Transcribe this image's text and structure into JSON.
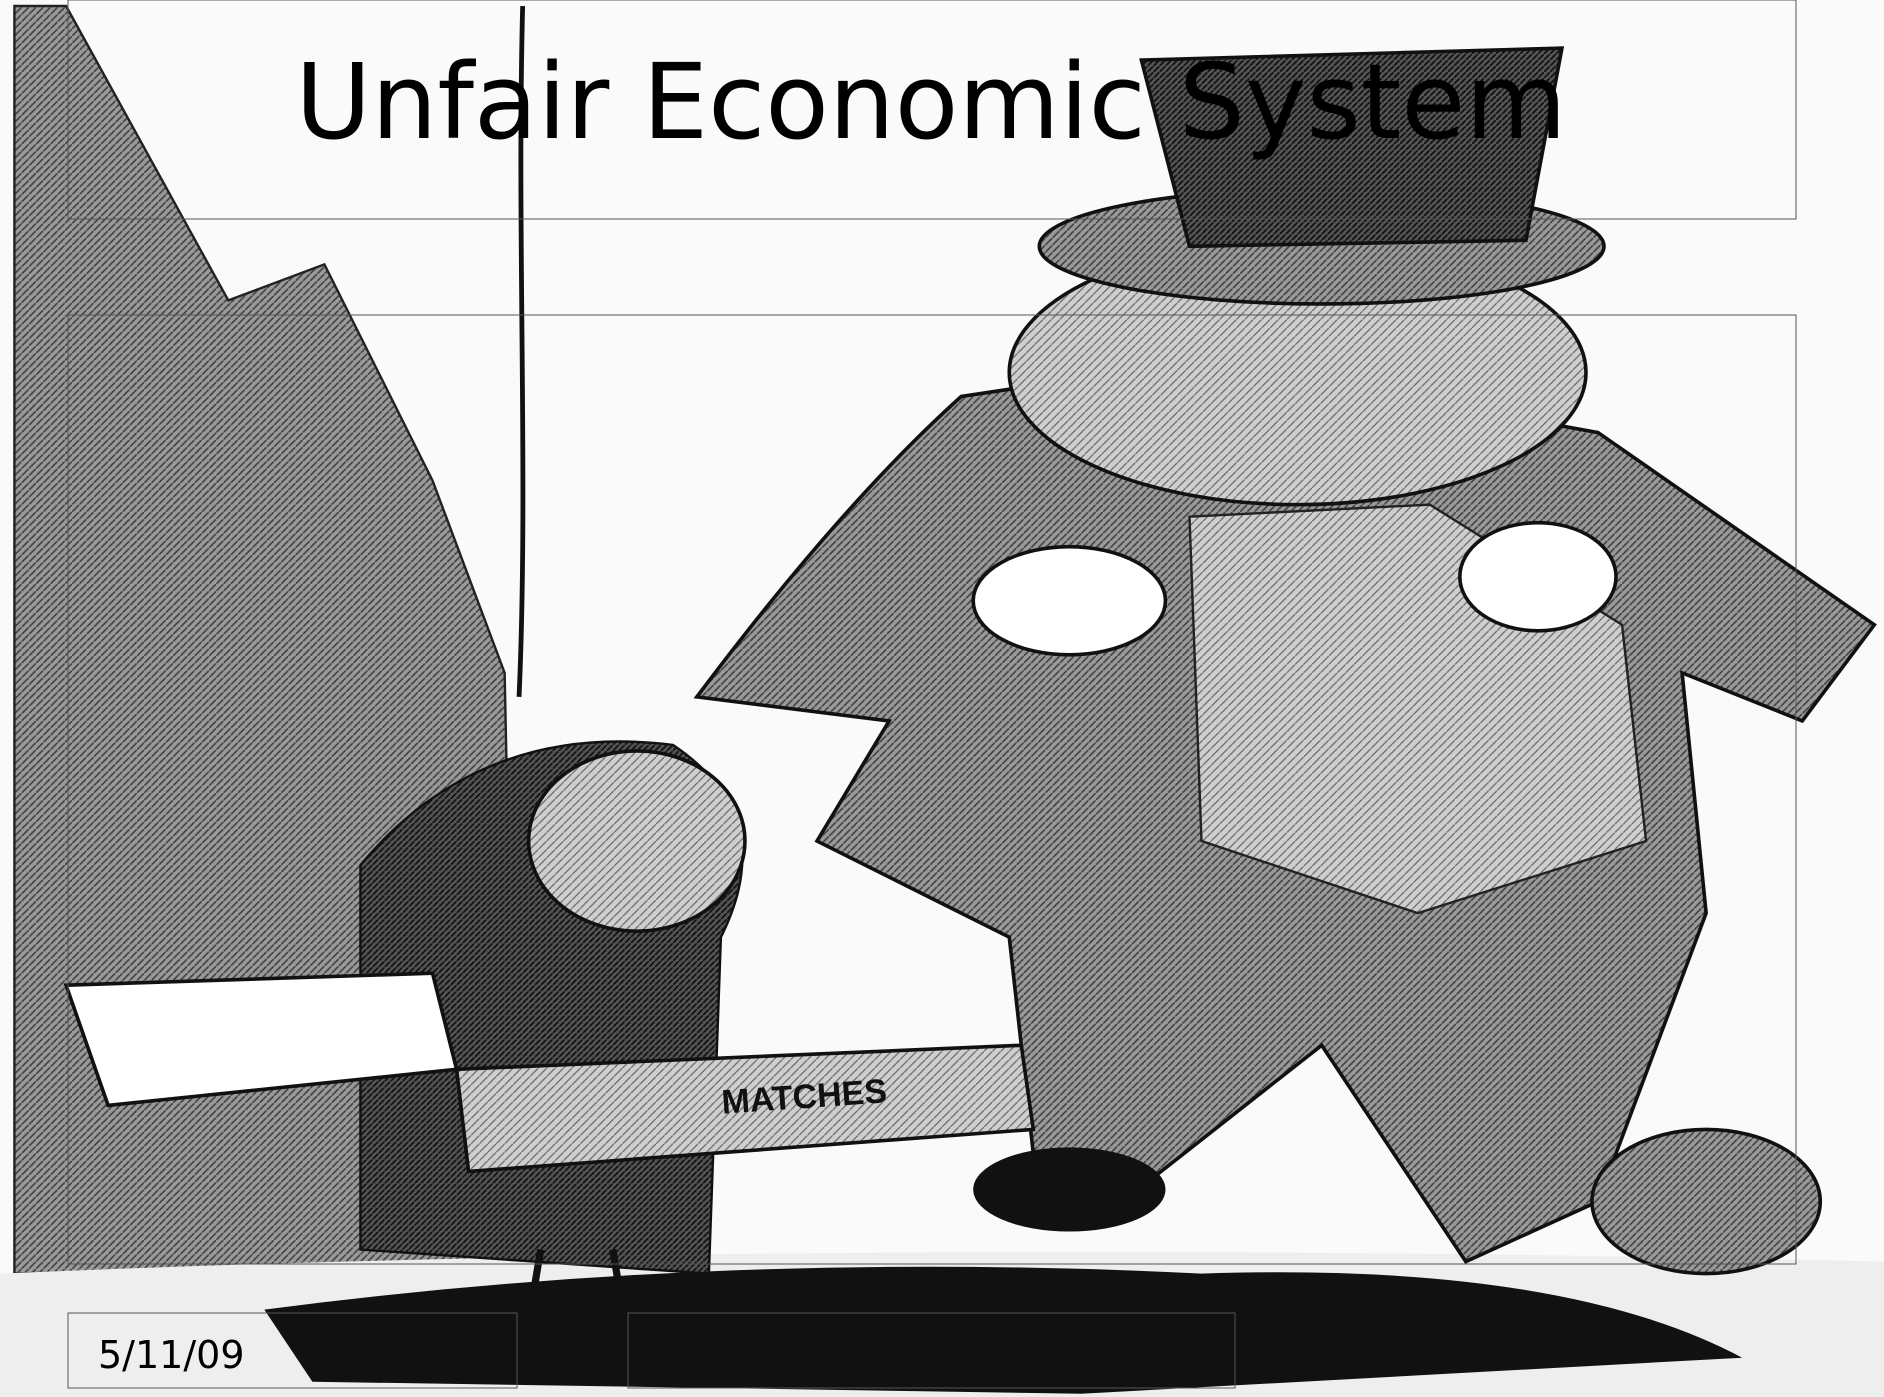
{
  "slide": {
    "title": "Unfair Economic System",
    "date": "5/11/09",
    "illustration_text": "MATCHES"
  }
}
